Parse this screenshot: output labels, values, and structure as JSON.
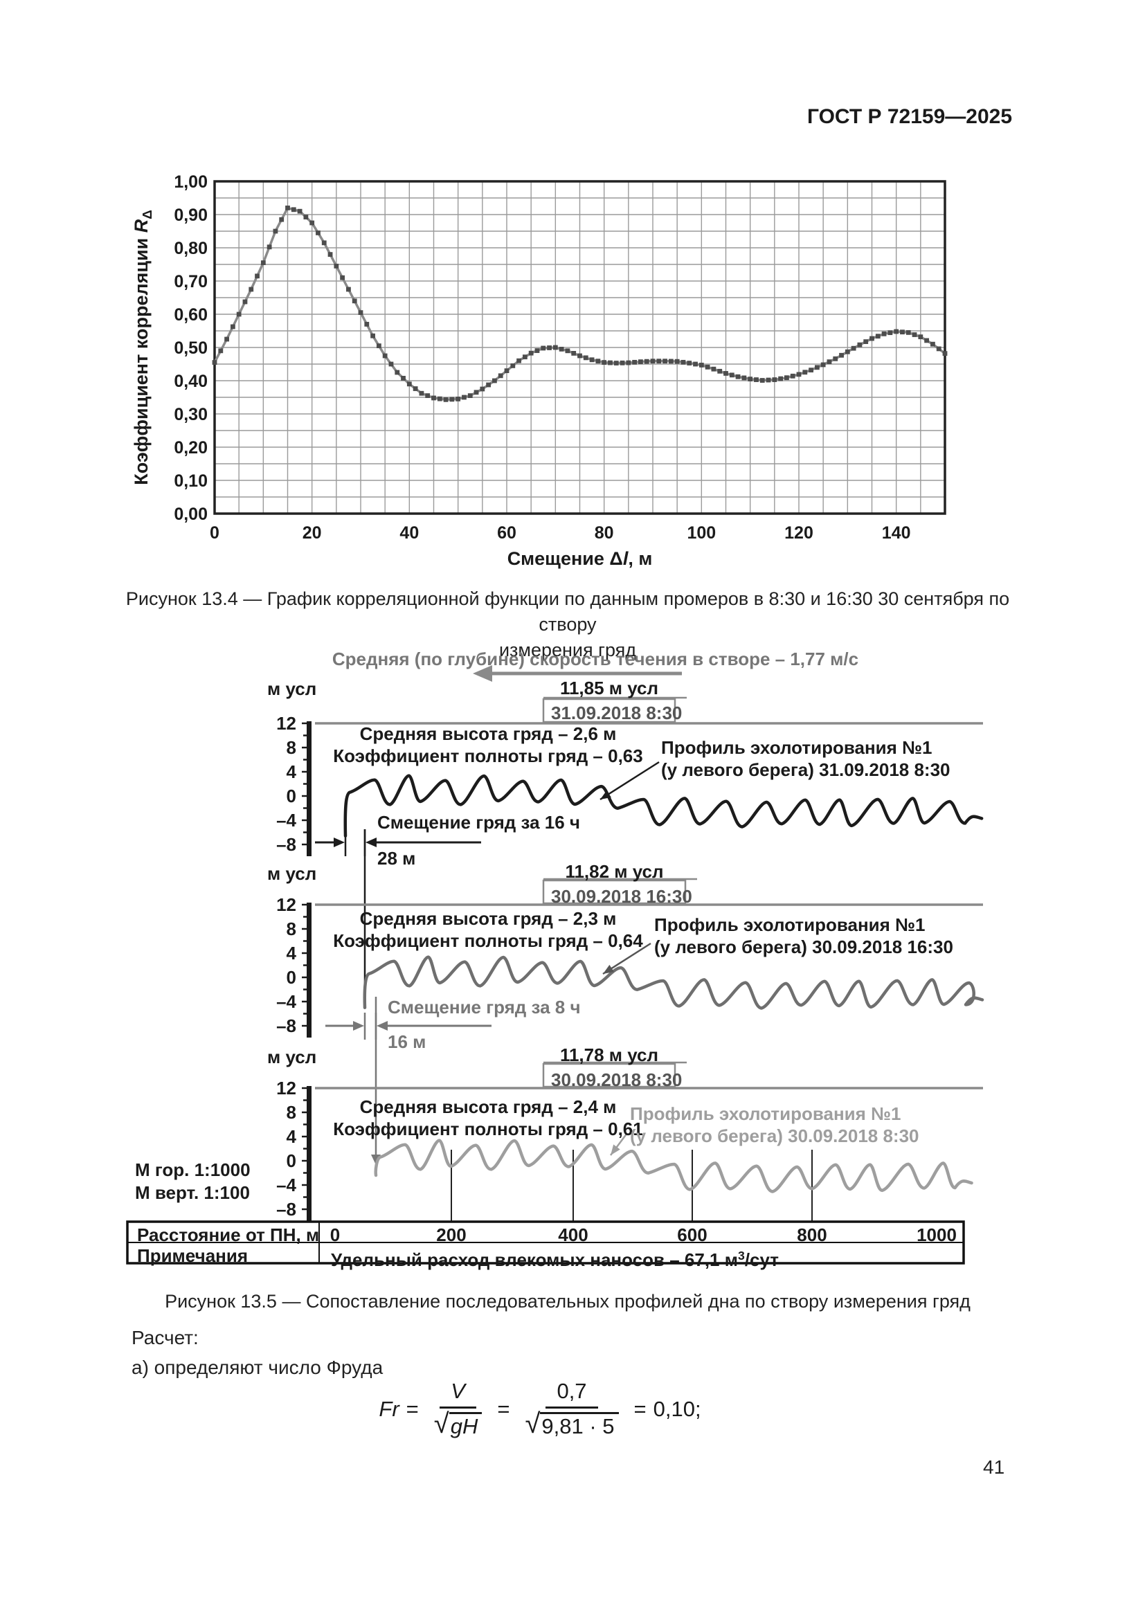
{
  "page": {
    "header": "ГОСТ Р 72159—2025",
    "number": "41"
  },
  "fig134": {
    "y_ticks": [
      "1,00",
      "0,90",
      "0,80",
      "0,70",
      "0,60",
      "0,50",
      "0,40",
      "0,30",
      "0,20",
      "0,10",
      "0,00"
    ],
    "x_ticks": [
      "0",
      "20",
      "40",
      "60",
      "80",
      "100",
      "120",
      "140"
    ],
    "ylabel_prefix": "Коэффициент корреляции ",
    "ylabel_var": "R",
    "ylabel_sub": "Δ",
    "xlabel_pre": "Смещение Δ",
    "xlabel_var": "l",
    "xlabel_post": ", м",
    "caption_line1": "Рисунок 13.4 — График корреляционной функции по данным промеров в 8:30 и 16:30 30 сентября по створу",
    "caption_line2": "измерения гряд"
  },
  "chart_data": {
    "type": "line",
    "title": "",
    "xlabel": "Смещение Δl, м",
    "ylabel": "Коэффициент корреляции RΔ",
    "xlim": [
      0,
      150
    ],
    "ylim": [
      0,
      1
    ],
    "x_major_step": 20,
    "x_minor_step": 5,
    "y_major_step": 0.1,
    "y_minor_step": 0.05,
    "grid": true,
    "marker": "square",
    "points": [
      [
        0,
        0.455
      ],
      [
        2.5,
        0.525
      ],
      [
        5,
        0.6
      ],
      [
        7.5,
        0.675
      ],
      [
        10,
        0.755
      ],
      [
        12.5,
        0.85
      ],
      [
        15,
        0.92
      ],
      [
        17.5,
        0.91
      ],
      [
        20,
        0.875
      ],
      [
        22.5,
        0.815
      ],
      [
        25,
        0.745
      ],
      [
        27.5,
        0.675
      ],
      [
        30,
        0.605
      ],
      [
        32.5,
        0.535
      ],
      [
        35,
        0.475
      ],
      [
        37.5,
        0.425
      ],
      [
        40,
        0.39
      ],
      [
        42.5,
        0.362
      ],
      [
        45,
        0.348
      ],
      [
        47.5,
        0.343
      ],
      [
        50,
        0.345
      ],
      [
        52.5,
        0.355
      ],
      [
        55,
        0.375
      ],
      [
        57.5,
        0.4
      ],
      [
        60,
        0.43
      ],
      [
        62.5,
        0.46
      ],
      [
        65,
        0.483
      ],
      [
        67.5,
        0.498
      ],
      [
        70,
        0.5
      ],
      [
        72.5,
        0.49
      ],
      [
        75,
        0.475
      ],
      [
        77.5,
        0.463
      ],
      [
        80,
        0.455
      ],
      [
        82.5,
        0.453
      ],
      [
        85,
        0.454
      ],
      [
        87.5,
        0.457
      ],
      [
        90,
        0.459
      ],
      [
        92.5,
        0.459
      ],
      [
        95,
        0.458
      ],
      [
        97.5,
        0.453
      ],
      [
        100,
        0.447
      ],
      [
        102.5,
        0.435
      ],
      [
        105,
        0.422
      ],
      [
        107.5,
        0.412
      ],
      [
        110,
        0.405
      ],
      [
        112.5,
        0.401
      ],
      [
        115,
        0.403
      ],
      [
        117.5,
        0.409
      ],
      [
        120,
        0.419
      ],
      [
        122.5,
        0.432
      ],
      [
        125,
        0.448
      ],
      [
        127.5,
        0.466
      ],
      [
        130,
        0.487
      ],
      [
        132.5,
        0.508
      ],
      [
        135,
        0.527
      ],
      [
        137.5,
        0.541
      ],
      [
        140,
        0.548
      ],
      [
        142.5,
        0.545
      ],
      [
        145,
        0.532
      ],
      [
        147.5,
        0.51
      ],
      [
        150,
        0.482
      ]
    ]
  },
  "fig135": {
    "velocity_note": "Средняя (по глубине) скорость течения в створе – 1,77 м/с",
    "unit_label": "м усл",
    "axis_ticks": [
      "12",
      "8",
      "4",
      "0",
      "–4",
      "–8"
    ],
    "profiles": [
      {
        "level": "11,85 м усл",
        "datetime": "31.09.2018 8:30",
        "height": "Средняя высота гряд – 2,6 м",
        "fullness": "Коэффициент полноты гряд – 0,63",
        "label1": "Профиль эхолотирования №1",
        "label2": "(у левого берега) 31.09.2018 8:30"
      },
      {
        "level": "11,82 м усл",
        "datetime": "30.09.2018 16:30",
        "height": "Средняя высота гряд – 2,3 м",
        "fullness": "Коэффициент полноты гряд – 0,64",
        "label1": "Профиль эхолотирования №1",
        "label2": "(у левого берега) 30.09.2018 16:30"
      },
      {
        "level": "11,78 м усл",
        "datetime": "30.09.2018 8:30",
        "height": "Средняя высота гряд – 2,4 м",
        "fullness": "Коэффициент полноты гряд – 0,61",
        "label1": "Профиль эхолотирования №1",
        "label2": "(у левого берега) 30.09.2018 8:30"
      }
    ],
    "shifts": [
      {
        "label": "Смещение гряд за 16 ч",
        "value": "28 м"
      },
      {
        "label": "Смещение гряд за 8 ч",
        "value": "16 м"
      }
    ],
    "scale_h": "М гор. 1:1000",
    "scale_v": "М верт. 1:100",
    "table": {
      "row1_label": "Расстояние от ПН, м",
      "distances": [
        "0",
        "200",
        "400",
        "600",
        "800",
        "1000"
      ],
      "row2_label": "Примечания",
      "note_pre": "Удельный расход влекомых наносов – 67,1 м",
      "note_sup": "3",
      "note_post": "/сут"
    },
    "caption": "Рисунок 13.5 — Сопоставление последовательных профилей дна по створу измерения гряд"
  },
  "calc": {
    "line1": "Расчет:",
    "line2": "а) определяют число Фруда",
    "formula": {
      "lhs": "Fr",
      "eq1": "=",
      "num1": "V",
      "sqrt": "√",
      "rad1": "gH",
      "eq2": "=",
      "num2": "0,7",
      "rad2": "9,81 · 5",
      "eq3": "=",
      "result": "0,10;"
    }
  },
  "colors": {
    "curve_line": "#8a8a8a",
    "marker": "#4d4d4d",
    "profile1": "#1c1c1c",
    "profile2": "#6f6f6f",
    "profile3": "#9e9e9e",
    "annotation_gray": "#8a8a8a"
  }
}
